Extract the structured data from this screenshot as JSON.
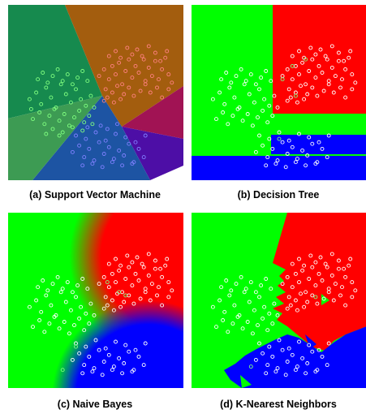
{
  "colors": {
    "svm_regions": [
      "#168a4e",
      "#a35d0e",
      "#a11354",
      "#4d0ea6",
      "#1d54a3",
      "#3ab53e",
      "#3d9b53"
    ],
    "green": "#00ff00",
    "red": "#ff0000",
    "blue": "#0000ff",
    "point_red": "#ff8080",
    "point_green": "#80ff80",
    "point_blue": "#8080ff",
    "point_white": "#ffffff"
  },
  "chart_data": [
    {
      "type": "scatter",
      "title": "(a) Support Vector Machine",
      "xlim": [
        0,
        100
      ],
      "ylim": [
        0,
        100
      ],
      "grid": false,
      "series": [
        {
          "color": "#ff8080",
          "x": [
            52,
            55,
            58,
            60,
            62,
            64,
            66,
            68,
            70,
            72,
            74,
            76,
            78,
            80,
            82,
            84,
            86,
            88,
            90,
            92,
            94,
            96,
            56,
            60,
            63,
            67,
            70,
            73,
            77,
            80,
            83,
            87,
            90,
            94,
            58,
            62,
            65,
            69,
            72,
            75,
            79,
            82,
            86,
            89,
            93,
            55,
            57,
            61,
            65
          ],
          "y": [
            60,
            64,
            58,
            66,
            61,
            68,
            55,
            63,
            70,
            59,
            66,
            62,
            72,
            57,
            65,
            60,
            69,
            58,
            64,
            71,
            61,
            56,
            52,
            50,
            54,
            49,
            53,
            48,
            51,
            55,
            50,
            53,
            47,
            52,
            72,
            75,
            71,
            77,
            73,
            76,
            70,
            78,
            74,
            69,
            75,
            45,
            47,
            44,
            46
          ]
        },
        {
          "color": "#80ff80",
          "x": [
            10,
            14,
            17,
            20,
            23,
            26,
            29,
            32,
            35,
            38,
            41,
            44,
            47,
            12,
            16,
            19,
            22,
            25,
            28,
            31,
            34,
            37,
            40,
            43,
            46,
            49,
            15,
            18,
            21,
            24,
            27,
            30,
            33,
            36,
            39,
            42,
            45,
            11,
            24,
            30,
            36,
            42,
            48,
            20,
            28
          ],
          "y": [
            46,
            50,
            43,
            53,
            47,
            41,
            55,
            49,
            44,
            52,
            46,
            42,
            48,
            34,
            38,
            31,
            36,
            40,
            33,
            37,
            30,
            35,
            39,
            32,
            36,
            41,
            58,
            62,
            56,
            60,
            64,
            57,
            61,
            55,
            59,
            63,
            57,
            40,
            28,
            26,
            29,
            27,
            31,
            25,
            24
          ]
        },
        {
          "color": "#8080ff",
          "x": [
            36,
            40,
            43,
            46,
            49,
            52,
            55,
            58,
            61,
            64,
            67,
            70,
            73,
            76,
            79,
            38,
            44,
            50,
            56,
            62,
            68,
            74,
            80,
            42,
            48,
            54,
            60,
            66,
            72,
            45,
            53,
            57,
            63
          ],
          "y": [
            14,
            18,
            11,
            16,
            9,
            20,
            13,
            17,
            10,
            15,
            12,
            19,
            8,
            16,
            11,
            24,
            22,
            26,
            21,
            25,
            23,
            20,
            24,
            6,
            7,
            5,
            8,
            6,
            7,
            29,
            30,
            28,
            31
          ]
        }
      ]
    },
    {
      "type": "scatter",
      "title": "(b) Decision Tree",
      "xlim": [
        0,
        100
      ],
      "ylim": [
        0,
        100
      ],
      "grid": false,
      "series": [
        {
          "color": "#ffffff",
          "x": [
            52,
            55,
            58,
            60,
            62,
            64,
            66,
            68,
            70,
            72,
            74,
            76,
            78,
            80,
            82,
            84,
            86,
            88,
            90,
            92,
            94,
            96,
            56,
            60,
            63,
            67,
            70,
            73,
            77,
            80,
            83,
            87,
            90,
            94,
            58,
            62,
            65,
            69,
            72,
            75,
            79,
            82,
            86,
            89,
            93,
            55,
            57,
            61,
            65,
            10,
            14,
            17,
            20,
            23,
            26,
            29,
            32,
            35,
            38,
            41,
            44,
            47,
            12,
            16,
            19,
            22,
            25,
            28,
            31,
            34,
            37,
            40,
            43,
            46,
            49,
            15,
            18,
            21,
            24,
            27,
            30,
            33,
            36,
            39,
            42,
            45,
            36,
            40,
            43,
            46,
            49,
            52,
            55,
            58,
            61,
            64,
            67,
            70,
            73,
            76,
            79,
            38,
            44,
            50,
            56,
            62,
            68,
            74,
            80,
            42,
            48,
            54,
            60,
            66,
            72
          ],
          "y": [
            60,
            64,
            58,
            66,
            61,
            68,
            55,
            63,
            70,
            59,
            66,
            62,
            72,
            57,
            65,
            60,
            69,
            58,
            64,
            71,
            61,
            56,
            52,
            50,
            54,
            49,
            53,
            48,
            51,
            55,
            50,
            53,
            47,
            52,
            72,
            75,
            71,
            77,
            73,
            76,
            70,
            78,
            74,
            69,
            75,
            45,
            47,
            44,
            46,
            46,
            50,
            43,
            53,
            47,
            41,
            55,
            49,
            44,
            52,
            46,
            42,
            48,
            34,
            38,
            31,
            36,
            40,
            33,
            37,
            30,
            35,
            39,
            32,
            36,
            41,
            58,
            62,
            56,
            60,
            64,
            57,
            61,
            55,
            59,
            63,
            57,
            14,
            18,
            11,
            16,
            9,
            20,
            13,
            17,
            10,
            15,
            12,
            19,
            8,
            16,
            11,
            24,
            22,
            26,
            21,
            25,
            23,
            20,
            24,
            6,
            7,
            5,
            8,
            6,
            7
          ]
        },
        {
          "color": "#80ff80",
          "x": [
            52,
            58,
            60,
            66,
            50
          ],
          "y": [
            58,
            66,
            48,
            70,
            22
          ]
        }
      ]
    },
    {
      "type": "scatter",
      "title": "(c) Naive Bayes",
      "xlim": [
        0,
        100
      ],
      "ylim": [
        0,
        100
      ],
      "grid": false,
      "series": [
        {
          "color": "#ffffff",
          "x": [
            52,
            55,
            58,
            60,
            62,
            64,
            66,
            68,
            70,
            72,
            74,
            76,
            78,
            80,
            82,
            84,
            86,
            88,
            90,
            92,
            94,
            96,
            56,
            60,
            63,
            67,
            70,
            73,
            77,
            80,
            83,
            87,
            90,
            94,
            58,
            62,
            65,
            69,
            72,
            75,
            79,
            82,
            86,
            89,
            93,
            55,
            57,
            61,
            65,
            10,
            14,
            17,
            20,
            23,
            26,
            29,
            32,
            35,
            38,
            41,
            44,
            47,
            12,
            16,
            19,
            22,
            25,
            28,
            31,
            34,
            37,
            40,
            43,
            46,
            49,
            15,
            18,
            21,
            24,
            27,
            30,
            33,
            36,
            39,
            42,
            45,
            36,
            40,
            43,
            46,
            49,
            52,
            55,
            58,
            61,
            64,
            67,
            70,
            73,
            76,
            79,
            38,
            44,
            50,
            56,
            62,
            68,
            74,
            80,
            42,
            48,
            54,
            60,
            66,
            72
          ],
          "y": [
            60,
            64,
            58,
            66,
            61,
            68,
            55,
            63,
            70,
            59,
            66,
            62,
            72,
            57,
            65,
            60,
            69,
            58,
            64,
            71,
            61,
            56,
            52,
            50,
            54,
            49,
            53,
            48,
            51,
            55,
            50,
            53,
            47,
            52,
            72,
            75,
            71,
            77,
            73,
            76,
            70,
            78,
            74,
            69,
            75,
            45,
            47,
            44,
            46,
            46,
            50,
            43,
            53,
            47,
            41,
            55,
            49,
            44,
            52,
            46,
            42,
            48,
            34,
            38,
            31,
            36,
            40,
            33,
            37,
            30,
            35,
            39,
            32,
            36,
            41,
            58,
            62,
            56,
            60,
            64,
            57,
            61,
            55,
            59,
            63,
            57,
            14,
            18,
            11,
            16,
            9,
            20,
            13,
            17,
            10,
            15,
            12,
            19,
            8,
            16,
            11,
            24,
            22,
            26,
            21,
            25,
            23,
            20,
            24,
            6,
            7,
            5,
            8,
            6,
            7
          ]
        },
        {
          "color": "#80ff80",
          "x": [
            57,
            64,
            68,
            38,
            30
          ],
          "y": [
            61,
            55,
            53,
            22,
            8
          ]
        }
      ]
    },
    {
      "type": "scatter",
      "title": "(d) K-Nearest Neighbors",
      "xlim": [
        0,
        100
      ],
      "ylim": [
        0,
        100
      ],
      "grid": false,
      "series": [
        {
          "color": "#ffffff",
          "x": [
            52,
            55,
            58,
            60,
            62,
            64,
            66,
            68,
            70,
            72,
            74,
            76,
            78,
            80,
            82,
            84,
            86,
            88,
            90,
            92,
            94,
            96,
            56,
            60,
            63,
            67,
            70,
            73,
            77,
            80,
            83,
            87,
            90,
            94,
            58,
            62,
            65,
            69,
            72,
            75,
            79,
            82,
            86,
            89,
            93,
            55,
            57,
            61,
            65,
            10,
            14,
            17,
            20,
            23,
            26,
            29,
            32,
            35,
            38,
            41,
            44,
            47,
            12,
            16,
            19,
            22,
            25,
            28,
            31,
            34,
            37,
            40,
            43,
            46,
            49,
            15,
            18,
            21,
            24,
            27,
            30,
            33,
            36,
            39,
            42,
            45,
            36,
            40,
            43,
            46,
            49,
            52,
            55,
            58,
            61,
            64,
            67,
            70,
            73,
            76,
            79,
            38,
            44,
            50,
            56,
            62,
            68,
            74,
            80,
            42,
            48,
            54,
            60,
            66,
            72
          ],
          "y": [
            60,
            64,
            58,
            66,
            61,
            68,
            55,
            63,
            70,
            59,
            66,
            62,
            72,
            57,
            65,
            60,
            69,
            58,
            64,
            71,
            61,
            56,
            52,
            50,
            54,
            49,
            53,
            48,
            51,
            55,
            50,
            53,
            47,
            52,
            72,
            75,
            71,
            77,
            73,
            76,
            70,
            78,
            74,
            69,
            75,
            45,
            47,
            44,
            46,
            46,
            50,
            43,
            53,
            47,
            41,
            55,
            49,
            44,
            52,
            46,
            42,
            48,
            34,
            38,
            31,
            36,
            40,
            33,
            37,
            30,
            35,
            39,
            32,
            36,
            41,
            58,
            62,
            56,
            60,
            64,
            57,
            61,
            55,
            59,
            63,
            57,
            14,
            18,
            11,
            16,
            9,
            20,
            13,
            17,
            10,
            15,
            12,
            19,
            8,
            16,
            11,
            24,
            22,
            26,
            21,
            25,
            23,
            20,
            24,
            6,
            7,
            5,
            8,
            6,
            7
          ]
        },
        {
          "color": "#80ff80",
          "x": [
            72,
            33
          ],
          "y": [
            52,
            10
          ]
        }
      ]
    }
  ]
}
